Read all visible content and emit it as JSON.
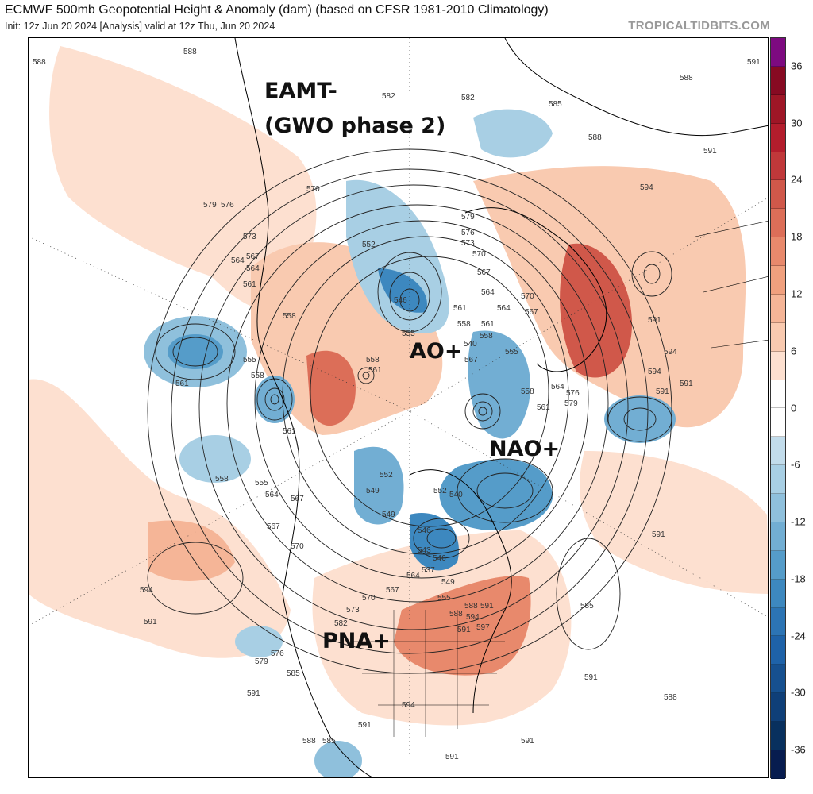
{
  "header": {
    "title": "ECMWF 500mb Geopotential Height & Anomaly (dam) (based on CFSR 1981-2010 Climatology)",
    "subtitle": "Init: 12z Jun 20 2024   [Analysis]   valid at 12z Thu, Jun 20 2024",
    "brand": "TROPICALTIDBITS.COM"
  },
  "annotations": {
    "eamt": "EAMT-",
    "gwo": "(GWO phase 2)",
    "ao": "AO+",
    "nao": "NAO+",
    "pna": "PNA+"
  },
  "contour_labels": [
    "588",
    "588",
    "582",
    "582",
    "585",
    "588",
    "591",
    "594",
    "591",
    "588",
    "591",
    "594",
    "594",
    "591",
    "591",
    "579",
    "576",
    "573",
    "570",
    "567",
    "564",
    "561",
    "558",
    "552",
    "546",
    "555",
    "558",
    "561",
    "564",
    "570",
    "579",
    "576",
    "573",
    "567",
    "564",
    "561",
    "558",
    "555",
    "558",
    "561",
    "564",
    "567",
    "570",
    "567",
    "561",
    "558",
    "555",
    "552",
    "549",
    "546",
    "540",
    "552",
    "549",
    "543",
    "537",
    "540",
    "546",
    "549",
    "555",
    "564",
    "567",
    "570",
    "573",
    "576",
    "579",
    "582",
    "585",
    "588",
    "591",
    "594",
    "597",
    "594",
    "591",
    "591",
    "588",
    "585",
    "588",
    "591",
    "591",
    "585",
    "591",
    "591",
    "591",
    "594",
    "591",
    "588",
    "579",
    "576",
    "570",
    "567",
    "564",
    "561",
    "558",
    "555",
    "558",
    "561",
    "564",
    "567"
  ],
  "colorbar": {
    "units": "dam",
    "ticks": [
      "36",
      "30",
      "24",
      "18",
      "12",
      "6",
      "0",
      "-6",
      "-12",
      "-18",
      "-24",
      "-30",
      "-36"
    ],
    "colors": [
      "#7d0a80",
      "#870a22",
      "#9e1626",
      "#b31d2c",
      "#c0383a",
      "#d0584a",
      "#dc6e58",
      "#e8896c",
      "#f0a07e",
      "#f5b597",
      "#f9cab0",
      "#fde0d0",
      "#ffffff",
      "#ffffff",
      "#c2dceb",
      "#a8cfe4",
      "#8fc0dc",
      "#72aed3",
      "#559cc9",
      "#3d88bf",
      "#2c74b4",
      "#1e62a8",
      "#16508f",
      "#0f3f78",
      "#08305e",
      "#071c4f"
    ]
  }
}
